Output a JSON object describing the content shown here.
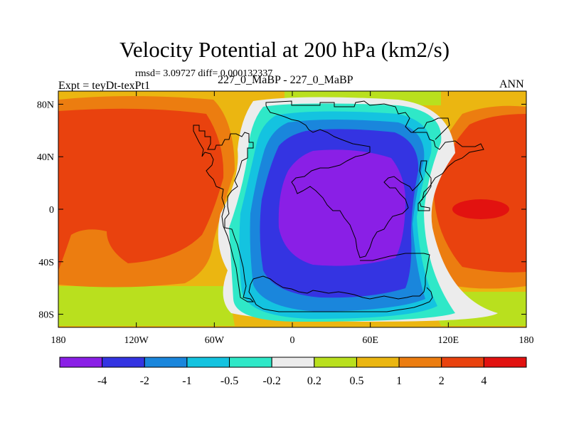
{
  "chart_data": {
    "type": "heatmap",
    "title": "Velocity Potential at 200 hPa (km2/s)",
    "stats": "rmsd= 3.09727 diff= 0.000132337",
    "left_label": "Expt = teyDt-texPt1",
    "center_label": "227_0_MaBP - 227_0_MaBP",
    "right_label": "ANN",
    "x_range": [
      -180,
      180
    ],
    "y_range": [
      -90,
      90
    ],
    "x_ticks": [
      {
        "value": -180,
        "label": "180"
      },
      {
        "value": -120,
        "label": "120W"
      },
      {
        "value": -60,
        "label": "60W"
      },
      {
        "value": 0,
        "label": "0"
      },
      {
        "value": 60,
        "label": "60E"
      },
      {
        "value": 120,
        "label": "120E"
      },
      {
        "value": 180,
        "label": "180"
      }
    ],
    "y_ticks": [
      {
        "value": 80,
        "label": "80N"
      },
      {
        "value": 40,
        "label": "40N"
      },
      {
        "value": 0,
        "label": "0"
      },
      {
        "value": -40,
        "label": "40S"
      },
      {
        "value": -80,
        "label": "80S"
      }
    ],
    "colorbar": {
      "levels": [
        -4,
        -2,
        -1,
        -0.5,
        -0.2,
        0.2,
        0.5,
        1,
        2,
        4
      ],
      "level_labels": [
        "-4",
        "-2",
        "-1",
        "-0.5",
        "-0.2",
        "0.2",
        "0.5",
        "1",
        "2",
        "4"
      ],
      "colors": [
        "#8a1fe6",
        "#3434e2",
        "#1a86dc",
        "#14c3e0",
        "#2fe8c8",
        "#ececec",
        "#b9e01e",
        "#ebb611",
        "#ec7d10",
        "#e9420e",
        "#e21210"
      ]
    },
    "field_description": "Wavenumber-1 pattern: negative minimum (< -4) centred near 40E, 15S; positive maximum (> 4) near 150E, 0; broad positive (2 to 4) over the western Pacific and eastern hemisphere dateline region.",
    "field_centers": {
      "minimum": {
        "lon": 40,
        "lat": -15,
        "value": -4.5
      },
      "maximum": {
        "lon": 150,
        "lat": 0,
        "value": 4.5
      }
    }
  }
}
